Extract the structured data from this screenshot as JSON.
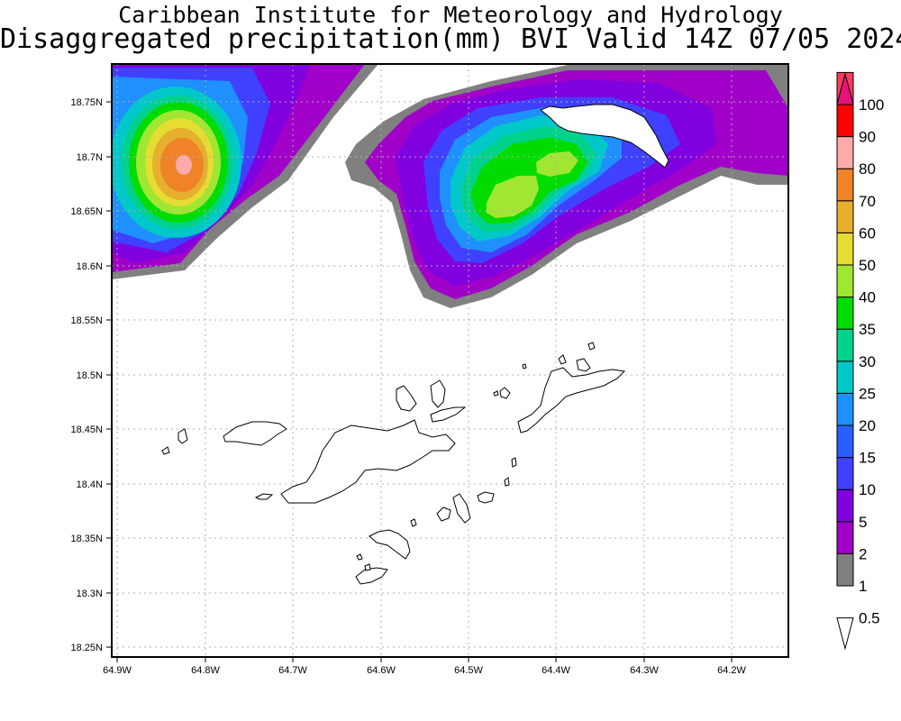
{
  "header": {
    "title_line1": "Caribbean Institute for Meteorology and Hydrology",
    "title_line2": "Disaggregated precipitation(mm) BVI Valid 14Z 07/05 2024"
  },
  "axes": {
    "lat_labels": [
      "18.75N",
      "18.7N",
      "18.65N",
      "18.6N",
      "18.55N",
      "18.5N",
      "18.45N",
      "18.4N",
      "18.35N",
      "18.3N",
      "18.25N"
    ],
    "lon_labels": [
      "64.9W",
      "64.8W",
      "64.7W",
      "64.6W",
      "64.5W",
      "64.4W",
      "64.3W",
      "64.2W"
    ]
  },
  "colorbar": {
    "levels": [
      "0.5",
      "1",
      "2",
      "5",
      "10",
      "15",
      "20",
      "25",
      "30",
      "35",
      "40",
      "50",
      "60",
      "70",
      "80",
      "90",
      "100"
    ],
    "colors": [
      "#ffffff",
      "#808080",
      "#a000c8",
      "#8000e0",
      "#4040ff",
      "#2860ff",
      "#1e90ff",
      "#00c8c8",
      "#00d28c",
      "#00dc00",
      "#a0e632",
      "#e6dc32",
      "#e6af2d",
      "#f08228",
      "#ffaaaa",
      "#ff0000",
      "#ff3c5a",
      "#e6147a"
    ]
  },
  "map": {
    "lat_range": [
      18.24,
      18.79
    ],
    "lon_range": [
      -64.905,
      -64.135
    ],
    "grid": true
  }
}
